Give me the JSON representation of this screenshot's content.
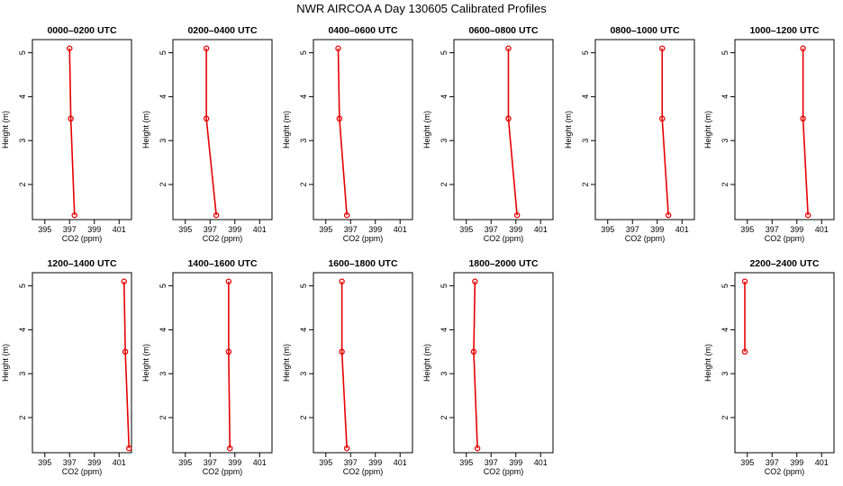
{
  "title": "NWR AIRCOA A  Day 130605  Calibrated Profiles",
  "colors": {
    "series": "#e60000",
    "axis": "#000000",
    "background": "#ffffff"
  },
  "chart_data": [
    {
      "type": "line",
      "title": "0000–0200 UTC",
      "xlabel": "CO2 (ppm)",
      "ylabel": "Height (m)",
      "xlim": [
        394,
        402
      ],
      "ylim": [
        1.2,
        5.3
      ],
      "xticks": [
        "395",
        "397",
        "399",
        "401"
      ],
      "yticks": [
        "2",
        "3",
        "4",
        "5"
      ],
      "x": [
        397.0,
        397.1,
        397.4
      ],
      "y": [
        5.1,
        3.5,
        1.3
      ],
      "grid": false
    },
    {
      "type": "line",
      "title": "0200–0400 UTC",
      "xlabel": "CO2 (ppm)",
      "ylabel": "Height (m)",
      "xlim": [
        394,
        402
      ],
      "ylim": [
        1.2,
        5.3
      ],
      "xticks": [
        "395",
        "397",
        "399",
        "401"
      ],
      "yticks": [
        "2",
        "3",
        "4",
        "5"
      ],
      "x": [
        396.7,
        396.7,
        397.5
      ],
      "y": [
        5.1,
        3.5,
        1.3
      ],
      "grid": false
    },
    {
      "type": "line",
      "title": "0400–0600 UTC",
      "xlabel": "CO2 (ppm)",
      "ylabel": "Height (m)",
      "xlim": [
        394,
        402
      ],
      "ylim": [
        1.2,
        5.3
      ],
      "xticks": [
        "395",
        "397",
        "399",
        "401"
      ],
      "yticks": [
        "2",
        "3",
        "4",
        "5"
      ],
      "x": [
        396.0,
        396.1,
        396.7
      ],
      "y": [
        5.1,
        3.5,
        1.3
      ],
      "grid": false
    },
    {
      "type": "line",
      "title": "0600–0800 UTC",
      "xlabel": "CO2 (ppm)",
      "ylabel": "Height (m)",
      "xlim": [
        394,
        402
      ],
      "ylim": [
        1.2,
        5.3
      ],
      "xticks": [
        "395",
        "397",
        "399",
        "401"
      ],
      "yticks": [
        "2",
        "3",
        "4",
        "5"
      ],
      "x": [
        398.4,
        398.4,
        399.1
      ],
      "y": [
        5.1,
        3.5,
        1.3
      ],
      "grid": false
    },
    {
      "type": "line",
      "title": "0800–1000 UTC",
      "xlabel": "CO2 (ppm)",
      "ylabel": "Height (m)",
      "xlim": [
        394,
        402
      ],
      "ylim": [
        1.2,
        5.3
      ],
      "xticks": [
        "395",
        "397",
        "399",
        "401"
      ],
      "yticks": [
        "2",
        "3",
        "4",
        "5"
      ],
      "x": [
        399.4,
        399.4,
        399.9
      ],
      "y": [
        5.1,
        3.5,
        1.3
      ],
      "grid": false
    },
    {
      "type": "line",
      "title": "1000–1200 UTC",
      "xlabel": "CO2 (ppm)",
      "ylabel": "Height (m)",
      "xlim": [
        394,
        402
      ],
      "ylim": [
        1.2,
        5.3
      ],
      "xticks": [
        "395",
        "397",
        "399",
        "401"
      ],
      "yticks": [
        "2",
        "3",
        "4",
        "5"
      ],
      "x": [
        399.5,
        399.5,
        399.9
      ],
      "y": [
        5.1,
        3.5,
        1.3
      ],
      "grid": false
    },
    {
      "type": "line",
      "title": "1200–1400 UTC",
      "xlabel": "CO2 (ppm)",
      "ylabel": "Height (m)",
      "xlim": [
        394,
        402
      ],
      "ylim": [
        1.2,
        5.3
      ],
      "xticks": [
        "395",
        "397",
        "399",
        "401"
      ],
      "yticks": [
        "2",
        "3",
        "4",
        "5"
      ],
      "x": [
        401.4,
        401.5,
        401.8
      ],
      "y": [
        5.1,
        3.5,
        1.3
      ],
      "grid": false
    },
    {
      "type": "line",
      "title": "1400–1600 UTC",
      "xlabel": "CO2 (ppm)",
      "ylabel": "Height (m)",
      "xlim": [
        394,
        402
      ],
      "ylim": [
        1.2,
        5.3
      ],
      "xticks": [
        "395",
        "397",
        "399",
        "401"
      ],
      "yticks": [
        "2",
        "3",
        "4",
        "5"
      ],
      "x": [
        398.5,
        398.5,
        398.6
      ],
      "y": [
        5.1,
        3.5,
        1.3
      ],
      "grid": false
    },
    {
      "type": "line",
      "title": "1600–1800 UTC",
      "xlabel": "CO2 (ppm)",
      "ylabel": "Height (m)",
      "xlim": [
        394,
        402
      ],
      "ylim": [
        1.2,
        5.3
      ],
      "xticks": [
        "395",
        "397",
        "399",
        "401"
      ],
      "yticks": [
        "2",
        "3",
        "4",
        "5"
      ],
      "x": [
        396.3,
        396.3,
        396.7
      ],
      "y": [
        5.1,
        3.5,
        1.3
      ],
      "grid": false
    },
    {
      "type": "line",
      "title": "1800–2000 UTC",
      "xlabel": "CO2 (ppm)",
      "ylabel": "Height (m)",
      "xlim": [
        394,
        402
      ],
      "ylim": [
        1.2,
        5.3
      ],
      "xticks": [
        "395",
        "397",
        "399",
        "401"
      ],
      "yticks": [
        "2",
        "3",
        "4",
        "5"
      ],
      "x": [
        395.7,
        395.6,
        395.9
      ],
      "y": [
        5.1,
        3.5,
        1.3
      ],
      "grid": false
    },
    null,
    {
      "type": "line",
      "title": "2200–2400 UTC",
      "xlabel": "CO2 (ppm)",
      "ylabel": "Height (m)",
      "xlim": [
        394,
        402
      ],
      "ylim": [
        1.2,
        5.3
      ],
      "xticks": [
        "395",
        "397",
        "399",
        "401"
      ],
      "yticks": [
        "2",
        "3",
        "4",
        "5"
      ],
      "x": [
        394.8,
        394.8
      ],
      "y": [
        5.1,
        3.5
      ],
      "grid": false
    }
  ]
}
